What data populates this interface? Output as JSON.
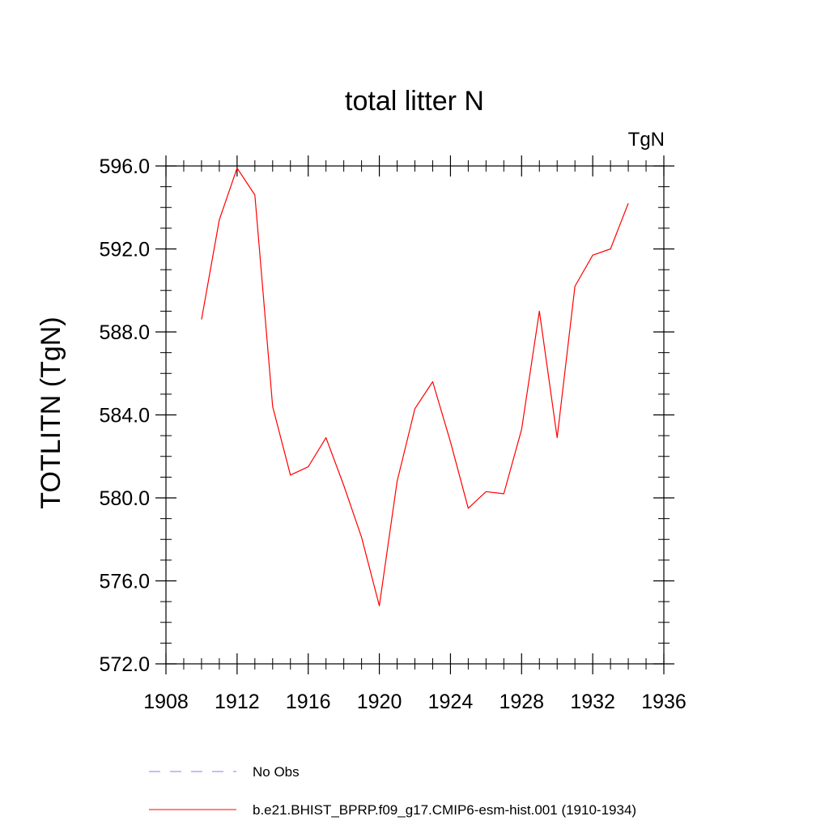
{
  "chart_data": {
    "type": "line",
    "title": "total litter N",
    "units_label": "TgN",
    "ylabel": "TOTLITN  (TgN)",
    "xlabel": "",
    "xlim": [
      1908,
      1936
    ],
    "ylim": [
      572,
      596
    ],
    "x_ticks": [
      "1908",
      "1912",
      "1916",
      "1920",
      "1924",
      "1928",
      "1932",
      "1936"
    ],
    "y_ticks": [
      "572.0",
      "576.0",
      "580.0",
      "584.0",
      "588.0",
      "592.0",
      "596.0"
    ],
    "series": [
      {
        "name": "b.e21.BHIST_BPRP.f09_g17.CMIP6-esm-hist.001 (1910-1934)",
        "color": "#ff0000",
        "x": [
          1910,
          1911,
          1912,
          1913,
          1914,
          1915,
          1916,
          1917,
          1918,
          1919,
          1920,
          1921,
          1922,
          1923,
          1924,
          1925,
          1926,
          1927,
          1928,
          1929,
          1930,
          1931,
          1932,
          1933,
          1934
        ],
        "y": [
          588.6,
          593.4,
          595.9,
          594.6,
          584.4,
          581.1,
          581.5,
          582.9,
          580.6,
          578.1,
          574.8,
          580.8,
          584.3,
          585.6,
          582.7,
          579.5,
          580.3,
          580.2,
          583.3,
          589.0,
          582.9,
          590.2,
          591.7,
          592.0,
          594.2
        ]
      }
    ],
    "legend": {
      "placement": "bottom",
      "entries": [
        {
          "label": "No Obs",
          "color": "#7f7fff",
          "style": "dashed"
        },
        {
          "label": "b.e21.BHIST_BPRP.f09_g17.CMIP6-esm-hist.001 (1910-1934)",
          "color": "#ff0000",
          "style": "solid"
        }
      ]
    },
    "grid": false
  }
}
